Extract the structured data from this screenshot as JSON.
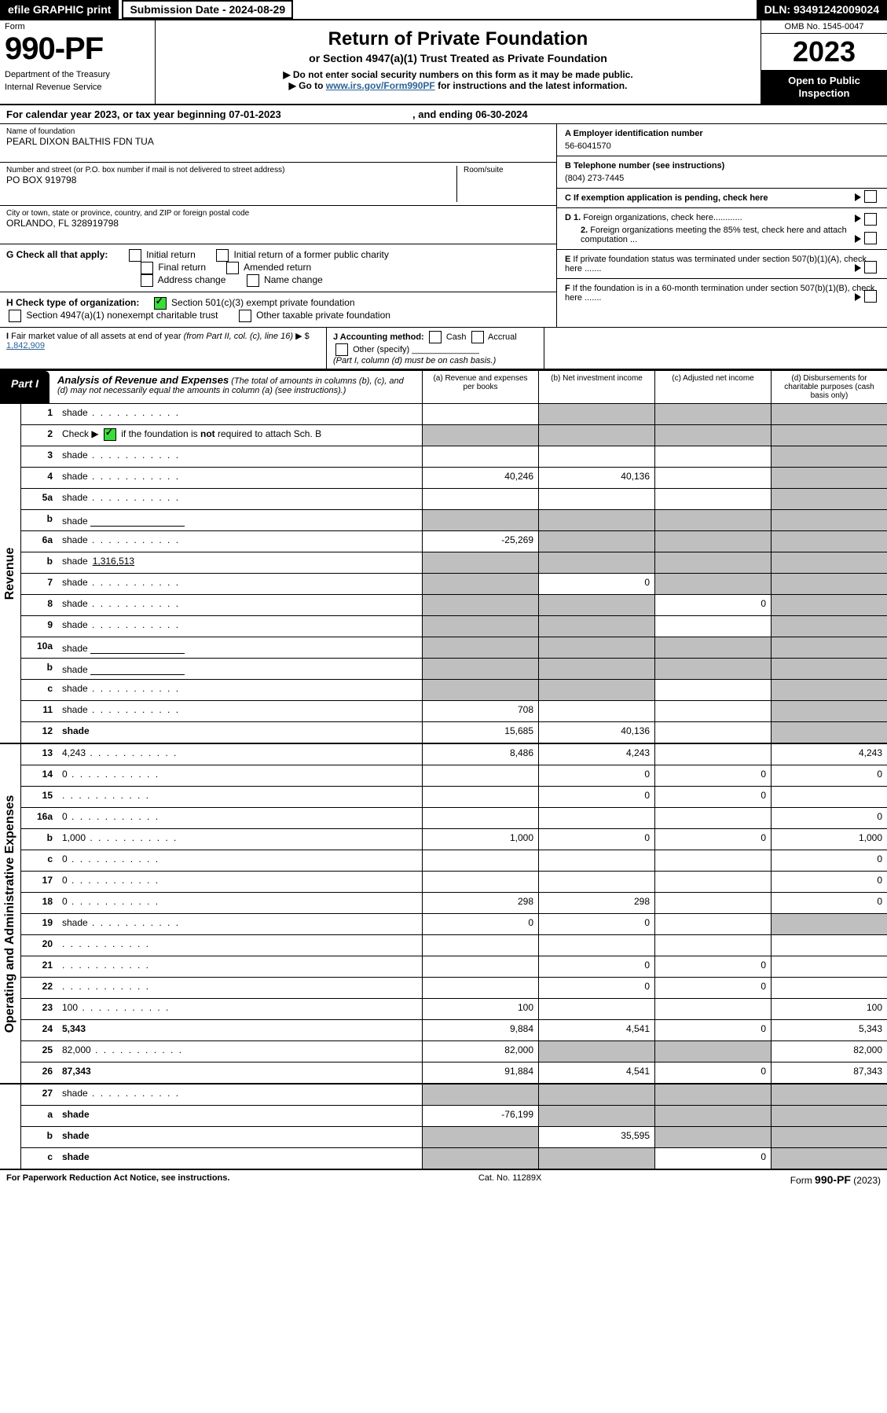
{
  "colors": {
    "black": "#000000",
    "white": "#ffffff",
    "link": "#2a6496",
    "shade": "#bfbfbf",
    "check_green": "#3adb3a"
  },
  "top": {
    "efile": "efile GRAPHIC print",
    "submission_label": "Submission Date - 2024-08-29",
    "dln": "DLN: 93491242009024"
  },
  "header": {
    "form_label": "Form",
    "form_number": "990-PF",
    "dept1": "Department of the Treasury",
    "dept2": "Internal Revenue Service",
    "title": "Return of Private Foundation",
    "subtitle": "or Section 4947(a)(1) Trust Treated as Private Foundation",
    "instr1": "▶ Do not enter social security numbers on this form as it may be made public.",
    "instr2_pre": "▶ Go to ",
    "instr2_link": "www.irs.gov/Form990PF",
    "instr2_post": " for instructions and the latest information.",
    "omb": "OMB No. 1545-0047",
    "taxyear": "2023",
    "open": "Open to Public Inspection"
  },
  "cal": {
    "text_pre": "For calendar year 2023, or tax year beginning 07-01-2023",
    "text_mid": ", and ending 06-30-2024"
  },
  "entity": {
    "name_label": "Name of foundation",
    "name": "PEARL DIXON BALTHIS FDN TUA",
    "addr_label": "Number and street (or P.O. box number if mail is not delivered to street address)",
    "room_label": "Room/suite",
    "addr": "PO BOX 919798",
    "city_label": "City or town, state or province, country, and ZIP or foreign postal code",
    "city": "ORLANDO, FL  328919798"
  },
  "right_info": {
    "A_label": "A Employer identification number",
    "A_val": "56-6041570",
    "B_label": "B Telephone number (see instructions)",
    "B_val": "(804) 273-7445",
    "C_label": "C If exemption application is pending, check here",
    "D1": "D 1. Foreign organizations, check here............",
    "D2": "2. Foreign organizations meeting the 85% test, check here and attach computation ...",
    "E": "E  If private foundation status was terminated under section 507(b)(1)(A), check here .......",
    "F": "F  If the foundation is in a 60-month termination under section 507(b)(1)(B), check here ......."
  },
  "G": {
    "label": "G Check all that apply:",
    "opts": [
      "Initial return",
      "Initial return of a former public charity",
      "Final return",
      "Amended return",
      "Address change",
      "Name change"
    ]
  },
  "H": {
    "label": "H Check type of organization:",
    "opt1": "Section 501(c)(3) exempt private foundation",
    "opt2": "Section 4947(a)(1) nonexempt charitable trust",
    "opt3": "Other taxable private foundation"
  },
  "I": {
    "label": "I Fair market value of all assets at end of year (from Part II, col. (c), line 16)",
    "val_prefix": "▶ $",
    "val": "1,842,909"
  },
  "J": {
    "label": "J Accounting method:",
    "cash": "Cash",
    "accrual": "Accrual",
    "other": "Other (specify)",
    "note": "(Part I, column (d) must be on cash basis.)"
  },
  "part1": {
    "tab": "Part I",
    "title": "Analysis of Revenue and Expenses",
    "title_note": "(The total of amounts in columns (b), (c), and (d) may not necessarily equal the amounts in column (a) (see instructions).)",
    "cols": {
      "a": "(a) Revenue and expenses per books",
      "b": "(b) Net investment income",
      "c": "(c) Adjusted net income",
      "d": "(d) Disbursements for charitable purposes (cash basis only)"
    }
  },
  "side_labels": {
    "rev": "Revenue",
    "exp": "Operating and Administrative Expenses"
  },
  "rows": [
    {
      "n": "1",
      "d": "shade",
      "a": "",
      "b": "shade",
      "c": "shade"
    },
    {
      "n": "2",
      "d_html": "Check ▶ [CK] if the foundation is <b>not</b> required to attach Sch. B",
      "a": "shade",
      "b": "shade",
      "c": "shade",
      "d": "shade"
    },
    {
      "n": "3",
      "d": "shade",
      "a": "",
      "b": "",
      "c": ""
    },
    {
      "n": "4",
      "d": "shade",
      "a": "40,246",
      "b": "40,136",
      "c": ""
    },
    {
      "n": "5a",
      "d": "shade",
      "a": "",
      "b": "",
      "c": ""
    },
    {
      "n": "b",
      "d": "shade",
      "inline": true,
      "a": "shade",
      "b": "shade",
      "c": "shade"
    },
    {
      "n": "6a",
      "d": "shade",
      "a": "-25,269",
      "b": "shade",
      "c": "shade"
    },
    {
      "n": "b",
      "d": "shade",
      "inline_val": "1,316,513",
      "a": "shade",
      "b": "shade",
      "c": "shade"
    },
    {
      "n": "7",
      "d": "shade",
      "a": "shade",
      "b": "0",
      "c": "shade"
    },
    {
      "n": "8",
      "d": "shade",
      "a": "shade",
      "b": "shade",
      "c": "0"
    },
    {
      "n": "9",
      "d": "shade",
      "a": "shade",
      "b": "shade",
      "c": ""
    },
    {
      "n": "10a",
      "d": "shade",
      "inline": true,
      "a": "shade",
      "b": "shade",
      "c": "shade"
    },
    {
      "n": "b",
      "d": "shade",
      "inline": true,
      "a": "shade",
      "b": "shade",
      "c": "shade"
    },
    {
      "n": "c",
      "d": "shade",
      "a": "shade",
      "b": "shade",
      "c": ""
    },
    {
      "n": "11",
      "d": "shade",
      "a": "708",
      "b": "",
      "c": ""
    },
    {
      "n": "12",
      "d": "shade",
      "bold": true,
      "a": "15,685",
      "b": "40,136",
      "c": ""
    }
  ],
  "rows_exp": [
    {
      "n": "13",
      "d": "4,243",
      "a": "8,486",
      "b": "4,243",
      "c": ""
    },
    {
      "n": "14",
      "d": "0",
      "a": "",
      "b": "0",
      "c": "0"
    },
    {
      "n": "15",
      "d": "",
      "a": "",
      "b": "0",
      "c": "0"
    },
    {
      "n": "16a",
      "d": "0",
      "a": "",
      "b": "",
      "c": ""
    },
    {
      "n": "b",
      "d": "1,000",
      "a": "1,000",
      "b": "0",
      "c": "0"
    },
    {
      "n": "c",
      "d": "0",
      "a": "",
      "b": "",
      "c": ""
    },
    {
      "n": "17",
      "d": "0",
      "a": "",
      "b": "",
      "c": ""
    },
    {
      "n": "18",
      "d": "0",
      "a": "298",
      "b": "298",
      "c": ""
    },
    {
      "n": "19",
      "d": "shade",
      "a": "0",
      "b": "0",
      "c": ""
    },
    {
      "n": "20",
      "d": "",
      "a": "",
      "b": "",
      "c": ""
    },
    {
      "n": "21",
      "d": "",
      "a": "",
      "b": "0",
      "c": "0"
    },
    {
      "n": "22",
      "d": "",
      "a": "",
      "b": "0",
      "c": "0"
    },
    {
      "n": "23",
      "d": "100",
      "a": "100",
      "b": "",
      "c": ""
    },
    {
      "n": "24",
      "d": "5,343",
      "bold": true,
      "a": "9,884",
      "b": "4,541",
      "c": "0"
    },
    {
      "n": "25",
      "d": "82,000",
      "a": "82,000",
      "b": "shade",
      "c": "shade"
    },
    {
      "n": "26",
      "d": "87,343",
      "bold": true,
      "a": "91,884",
      "b": "4,541",
      "c": "0"
    }
  ],
  "rows_net": [
    {
      "n": "27",
      "d": "shade",
      "a": "shade",
      "b": "shade",
      "c": "shade"
    },
    {
      "n": "a",
      "d": "shade",
      "bold": true,
      "a": "-76,199",
      "b": "shade",
      "c": "shade"
    },
    {
      "n": "b",
      "d": "shade",
      "bold": true,
      "a": "shade",
      "b": "35,595",
      "c": "shade"
    },
    {
      "n": "c",
      "d": "shade",
      "bold": true,
      "a": "shade",
      "b": "shade",
      "c": "0"
    }
  ],
  "footer": {
    "left": "For Paperwork Reduction Act Notice, see instructions.",
    "mid": "Cat. No. 11289X",
    "right_pre": "Form ",
    "right_form": "990-PF",
    "right_post": " (2023)"
  }
}
